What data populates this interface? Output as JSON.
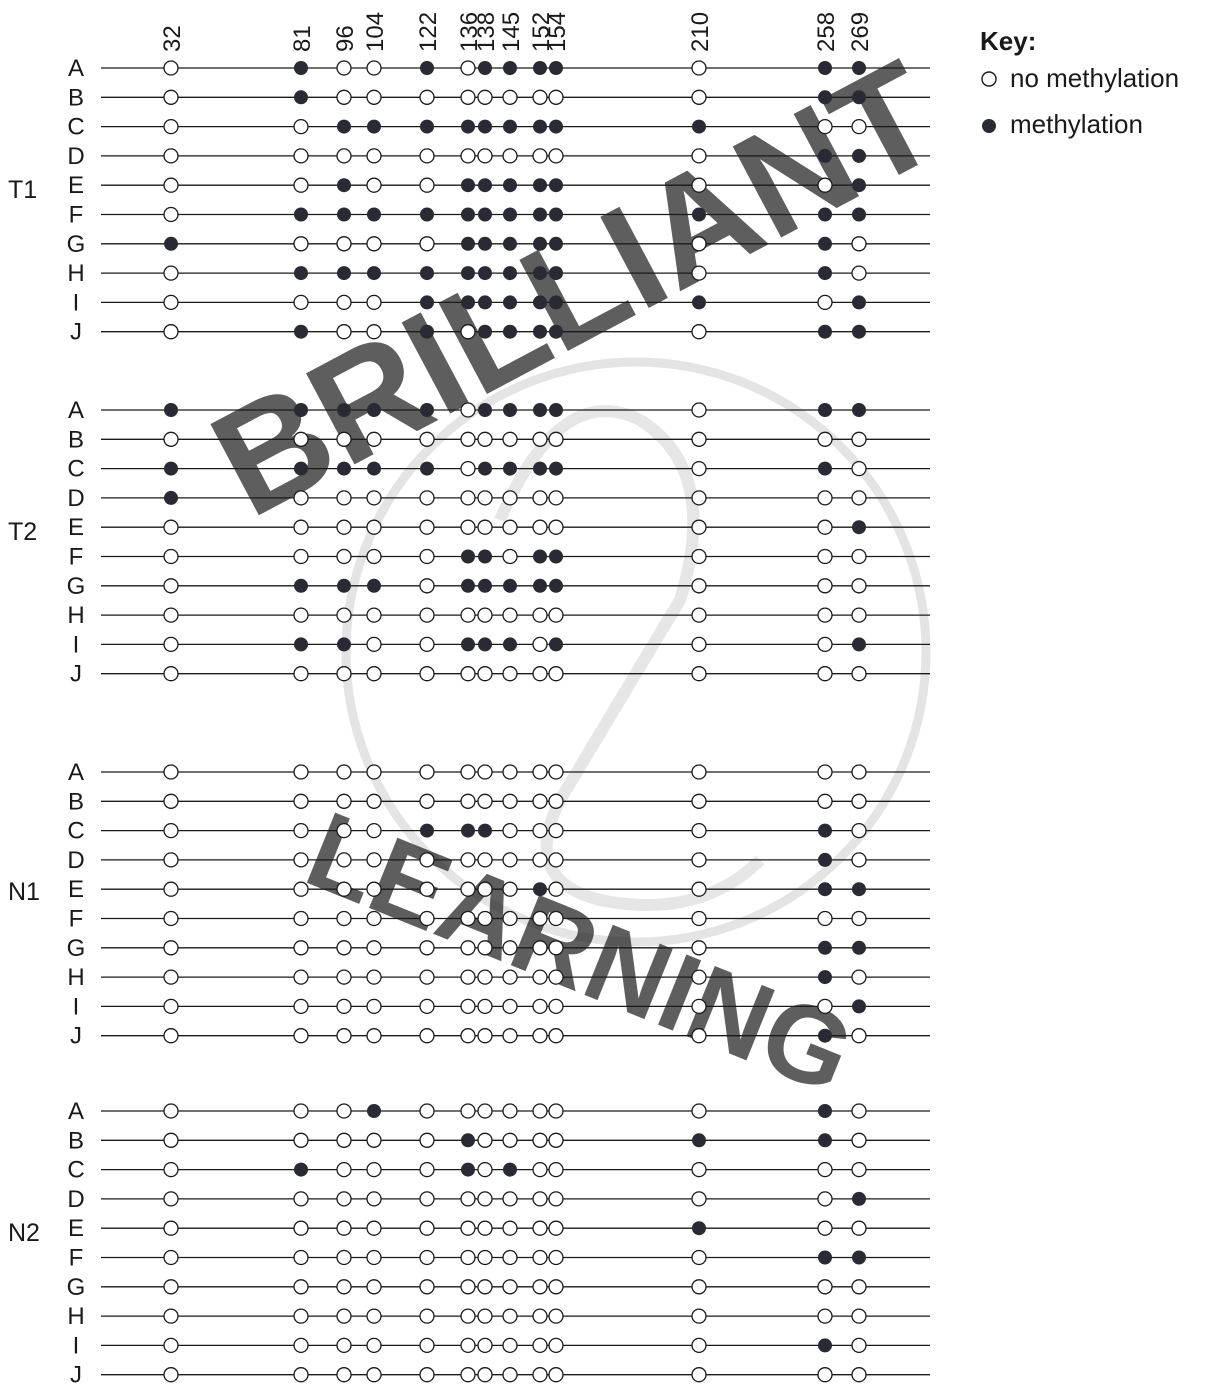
{
  "positions": [
    "32",
    "81",
    "96",
    "104",
    "122",
    "136",
    "138",
    "145",
    "152",
    "154",
    "210",
    "258",
    "269"
  ],
  "row_labels": [
    "A",
    "B",
    "C",
    "D",
    "E",
    "F",
    "G",
    "H",
    "I",
    "J"
  ],
  "groups": [
    {
      "name": "T1",
      "rows": [
        "0100101111011",
        "0100000000011",
        "0011111111100",
        "0000000000011",
        "0010011111001",
        "0111111111111",
        "1000011111010",
        "0111111111010",
        "0000111111101",
        "0100101111011"
      ]
    },
    {
      "name": "T2",
      "rows": [
        "1111101111011",
        "0000000000000",
        "1111101111010",
        "1000000000000",
        "0000000000001",
        "0000011011000",
        "0111011111000",
        "0000000000000",
        "0110011101001",
        "0000000000000"
      ]
    },
    {
      "name": "N1",
      "rows": [
        "0000000000000",
        "0000000000000",
        "0000111000010",
        "0000000000010",
        "0000000010011",
        "0000000000000",
        "0000000000011",
        "0000000000010",
        "0000000000001",
        "0000000000010"
      ]
    },
    {
      "name": "N2",
      "rows": [
        "0001000000010",
        "0000010000110",
        "0100010100000",
        "0000000000001",
        "0000000000100",
        "0000000000011",
        "0000000000000",
        "0000000000000",
        "0000000000010",
        "0000000000000"
      ]
    }
  ],
  "key": {
    "title": "Key:",
    "open_label": "no methylation",
    "filled_label": "methylation"
  },
  "watermark": {
    "text_top": "BRILLIANT",
    "text_bottom": "LEARNING",
    "color": "#c9c9f2"
  },
  "colors": {
    "line": "#1a1a1a",
    "filled_dot": "#2a2a35",
    "open_dot_fill": "#ffffff"
  }
}
